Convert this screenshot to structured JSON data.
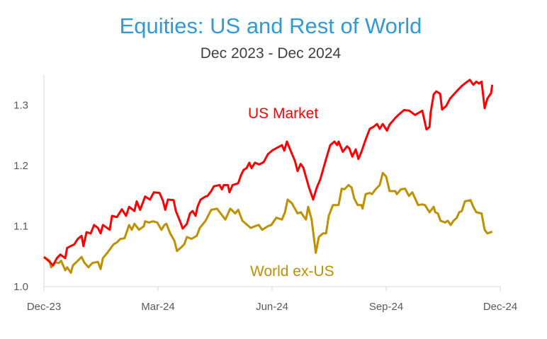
{
  "chart_data": {
    "type": "line",
    "title": "Equities: US and Rest of World",
    "subtitle": "Dec 2023 - Dec 2024",
    "xlabel": "",
    "ylabel": "",
    "x_unit": "months since Dec-23",
    "xlim": [
      0,
      12
    ],
    "ylim": [
      1.0,
      1.35
    ],
    "x_ticks": [
      {
        "pos": 0,
        "label": "Dec-23"
      },
      {
        "pos": 3,
        "label": "Mar-24"
      },
      {
        "pos": 6,
        "label": "Jun-24"
      },
      {
        "pos": 9,
        "label": "Sep-24"
      },
      {
        "pos": 12,
        "label": "Dec-24"
      }
    ],
    "y_ticks": [
      {
        "value": 1.0,
        "label": "1.0"
      },
      {
        "value": 1.1,
        "label": "1.1"
      },
      {
        "value": 1.2,
        "label": "1.2"
      },
      {
        "value": 1.3,
        "label": "1.3"
      }
    ],
    "grid": false,
    "series": [
      {
        "name": "US Market",
        "color": "#FF0000",
        "points": [
          [
            0,
            1.049
          ],
          [
            0.15,
            1.041
          ],
          [
            0.24,
            1.035
          ],
          [
            0.34,
            1.047
          ],
          [
            0.43,
            1.053
          ],
          [
            0.56,
            1.047
          ],
          [
            0.61,
            1.064
          ],
          [
            0.8,
            1.07
          ],
          [
            0.89,
            1.079
          ],
          [
            0.99,
            1.084
          ],
          [
            1.04,
            1.067
          ],
          [
            1.12,
            1.09
          ],
          [
            1.23,
            1.088
          ],
          [
            1.32,
            1.102
          ],
          [
            1.42,
            1.097
          ],
          [
            1.49,
            1.088
          ],
          [
            1.55,
            1.102
          ],
          [
            1.73,
            1.094
          ],
          [
            1.79,
            1.117
          ],
          [
            1.92,
            1.115
          ],
          [
            2.05,
            1.128
          ],
          [
            2.16,
            1.117
          ],
          [
            2.24,
            1.132
          ],
          [
            2.38,
            1.125
          ],
          [
            2.44,
            1.141
          ],
          [
            2.53,
            1.127
          ],
          [
            2.66,
            1.149
          ],
          [
            2.79,
            1.144
          ],
          [
            2.89,
            1.156
          ],
          [
            3.04,
            1.155
          ],
          [
            3.13,
            1.142
          ],
          [
            3.19,
            1.127
          ],
          [
            3.26,
            1.144
          ],
          [
            3.41,
            1.143
          ],
          [
            3.47,
            1.125
          ],
          [
            3.58,
            1.108
          ],
          [
            3.65,
            1.096
          ],
          [
            3.76,
            1.104
          ],
          [
            3.84,
            1.121
          ],
          [
            3.91,
            1.125
          ],
          [
            3.99,
            1.117
          ],
          [
            4.04,
            1.132
          ],
          [
            4.12,
            1.144
          ],
          [
            4.25,
            1.149
          ],
          [
            4.3,
            1.15
          ],
          [
            4.4,
            1.158
          ],
          [
            4.47,
            1.166
          ],
          [
            4.62,
            1.168
          ],
          [
            4.68,
            1.161
          ],
          [
            4.73,
            1.168
          ],
          [
            4.84,
            1.168
          ],
          [
            4.88,
            1.156
          ],
          [
            4.96,
            1.168
          ],
          [
            5.11,
            1.171
          ],
          [
            5.18,
            1.184
          ],
          [
            5.25,
            1.193
          ],
          [
            5.33,
            1.196
          ],
          [
            5.4,
            1.205
          ],
          [
            5.46,
            1.196
          ],
          [
            5.55,
            1.205
          ],
          [
            5.66,
            1.202
          ],
          [
            5.78,
            1.206
          ],
          [
            5.89,
            1.219
          ],
          [
            6.02,
            1.226
          ],
          [
            6.11,
            1.229
          ],
          [
            6.26,
            1.234
          ],
          [
            6.32,
            1.225
          ],
          [
            6.39,
            1.24
          ],
          [
            6.52,
            1.22
          ],
          [
            6.6,
            1.208
          ],
          [
            6.67,
            1.191
          ],
          [
            6.75,
            1.203
          ],
          [
            6.82,
            1.197
          ],
          [
            6.97,
            1.164
          ],
          [
            7.08,
            1.144
          ],
          [
            7.17,
            1.163
          ],
          [
            7.27,
            1.178
          ],
          [
            7.42,
            1.211
          ],
          [
            7.53,
            1.234
          ],
          [
            7.64,
            1.24
          ],
          [
            7.71,
            1.234
          ],
          [
            7.75,
            1.24
          ],
          [
            7.86,
            1.223
          ],
          [
            7.97,
            1.232
          ],
          [
            8.03,
            1.229
          ],
          [
            8.11,
            1.215
          ],
          [
            8.2,
            1.227
          ],
          [
            8.27,
            1.211
          ],
          [
            8.35,
            1.223
          ],
          [
            8.46,
            1.243
          ],
          [
            8.57,
            1.261
          ],
          [
            8.66,
            1.264
          ],
          [
            8.76,
            1.269
          ],
          [
            8.83,
            1.261
          ],
          [
            8.91,
            1.269
          ],
          [
            9.02,
            1.258
          ],
          [
            9.09,
            1.268
          ],
          [
            9.24,
            1.279
          ],
          [
            9.32,
            1.284
          ],
          [
            9.47,
            1.292
          ],
          [
            9.61,
            1.291
          ],
          [
            9.76,
            1.284
          ],
          [
            9.95,
            1.291
          ],
          [
            9.99,
            1.28
          ],
          [
            10.06,
            1.26
          ],
          [
            10.14,
            1.264
          ],
          [
            10.17,
            1.288
          ],
          [
            10.25,
            1.318
          ],
          [
            10.32,
            1.323
          ],
          [
            10.42,
            1.319
          ],
          [
            10.47,
            1.293
          ],
          [
            10.58,
            1.299
          ],
          [
            10.68,
            1.311
          ],
          [
            10.81,
            1.32
          ],
          [
            10.88,
            1.325
          ],
          [
            10.99,
            1.332
          ],
          [
            11.11,
            1.338
          ],
          [
            11.2,
            1.342
          ],
          [
            11.29,
            1.334
          ],
          [
            11.37,
            1.339
          ],
          [
            11.44,
            1.336
          ],
          [
            11.51,
            1.339
          ],
          [
            11.59,
            1.295
          ],
          [
            11.66,
            1.311
          ],
          [
            11.76,
            1.32
          ],
          [
            11.79,
            1.334
          ]
        ]
      },
      {
        "name": "World ex-US",
        "color": "#BF9000",
        "points": [
          [
            0,
            1.049
          ],
          [
            0.15,
            1.043
          ],
          [
            0.19,
            1.032
          ],
          [
            0.3,
            1.04
          ],
          [
            0.39,
            1.039
          ],
          [
            0.45,
            1.043
          ],
          [
            0.56,
            1.027
          ],
          [
            0.61,
            1.032
          ],
          [
            0.71,
            1.023
          ],
          [
            0.76,
            1.035
          ],
          [
            0.86,
            1.041
          ],
          [
            0.99,
            1.049
          ],
          [
            1.06,
            1.04
          ],
          [
            1.17,
            1.032
          ],
          [
            1.27,
            1.039
          ],
          [
            1.42,
            1.041
          ],
          [
            1.49,
            1.029
          ],
          [
            1.55,
            1.047
          ],
          [
            1.68,
            1.057
          ],
          [
            1.83,
            1.07
          ],
          [
            1.92,
            1.073
          ],
          [
            2.01,
            1.079
          ],
          [
            2.12,
            1.08
          ],
          [
            2.24,
            1.102
          ],
          [
            2.31,
            1.094
          ],
          [
            2.38,
            1.104
          ],
          [
            2.5,
            1.094
          ],
          [
            2.63,
            1.1
          ],
          [
            2.66,
            1.108
          ],
          [
            2.76,
            1.106
          ],
          [
            2.87,
            1.108
          ],
          [
            2.98,
            1.106
          ],
          [
            3.09,
            1.094
          ],
          [
            3.17,
            1.102
          ],
          [
            3.22,
            1.104
          ],
          [
            3.32,
            1.088
          ],
          [
            3.43,
            1.076
          ],
          [
            3.5,
            1.059
          ],
          [
            3.61,
            1.065
          ],
          [
            3.69,
            1.07
          ],
          [
            3.76,
            1.082
          ],
          [
            3.88,
            1.079
          ],
          [
            4.02,
            1.084
          ],
          [
            4.1,
            1.097
          ],
          [
            4.25,
            1.109
          ],
          [
            4.4,
            1.127
          ],
          [
            4.55,
            1.129
          ],
          [
            4.66,
            1.12
          ],
          [
            4.77,
            1.111
          ],
          [
            4.9,
            1.129
          ],
          [
            5.03,
            1.121
          ],
          [
            5.11,
            1.127
          ],
          [
            5.22,
            1.109
          ],
          [
            5.44,
            1.097
          ],
          [
            5.55,
            1.1
          ],
          [
            5.65,
            1.102
          ],
          [
            5.74,
            1.094
          ],
          [
            5.89,
            1.1
          ],
          [
            5.98,
            1.102
          ],
          [
            6.11,
            1.114
          ],
          [
            6.26,
            1.111
          ],
          [
            6.34,
            1.123
          ],
          [
            6.41,
            1.144
          ],
          [
            6.52,
            1.138
          ],
          [
            6.6,
            1.129
          ],
          [
            6.67,
            1.121
          ],
          [
            6.76,
            1.123
          ],
          [
            6.82,
            1.117
          ],
          [
            6.89,
            1.111
          ],
          [
            6.95,
            1.132
          ],
          [
            7.04,
            1.111
          ],
          [
            7.15,
            1.056
          ],
          [
            7.23,
            1.082
          ],
          [
            7.34,
            1.088
          ],
          [
            7.42,
            1.088
          ],
          [
            7.49,
            1.117
          ],
          [
            7.6,
            1.135
          ],
          [
            7.75,
            1.135
          ],
          [
            7.83,
            1.162
          ],
          [
            7.9,
            1.161
          ],
          [
            8.01,
            1.168
          ],
          [
            8.09,
            1.164
          ],
          [
            8.16,
            1.146
          ],
          [
            8.25,
            1.135
          ],
          [
            8.35,
            1.135
          ],
          [
            8.38,
            1.129
          ],
          [
            8.46,
            1.153
          ],
          [
            8.57,
            1.155
          ],
          [
            8.63,
            1.153
          ],
          [
            8.72,
            1.161
          ],
          [
            8.83,
            1.168
          ],
          [
            8.91,
            1.188
          ],
          [
            9.0,
            1.182
          ],
          [
            9.09,
            1.158
          ],
          [
            9.24,
            1.158
          ],
          [
            9.28,
            1.153
          ],
          [
            9.39,
            1.161
          ],
          [
            9.5,
            1.162
          ],
          [
            9.6,
            1.15
          ],
          [
            9.69,
            1.156
          ],
          [
            9.84,
            1.135
          ],
          [
            9.95,
            1.136
          ],
          [
            10.02,
            1.135
          ],
          [
            10.14,
            1.123
          ],
          [
            10.25,
            1.132
          ],
          [
            10.29,
            1.123
          ],
          [
            10.36,
            1.121
          ],
          [
            10.43,
            1.109
          ],
          [
            10.55,
            1.106
          ],
          [
            10.62,
            1.109
          ],
          [
            10.7,
            1.102
          ],
          [
            10.77,
            1.109
          ],
          [
            10.86,
            1.114
          ],
          [
            10.92,
            1.123
          ],
          [
            10.99,
            1.125
          ],
          [
            11.07,
            1.141
          ],
          [
            11.14,
            1.142
          ],
          [
            11.22,
            1.143
          ],
          [
            11.29,
            1.132
          ],
          [
            11.37,
            1.123
          ],
          [
            11.51,
            1.121
          ],
          [
            11.59,
            1.094
          ],
          [
            11.66,
            1.088
          ],
          [
            11.79,
            1.091
          ]
        ]
      }
    ],
    "annotations": [
      {
        "text": "US Market",
        "color": "#FF0000"
      },
      {
        "text": "World ex-US",
        "color": "#BF9000"
      }
    ],
    "legend": "none",
    "title_color": "#2E9BD6"
  }
}
